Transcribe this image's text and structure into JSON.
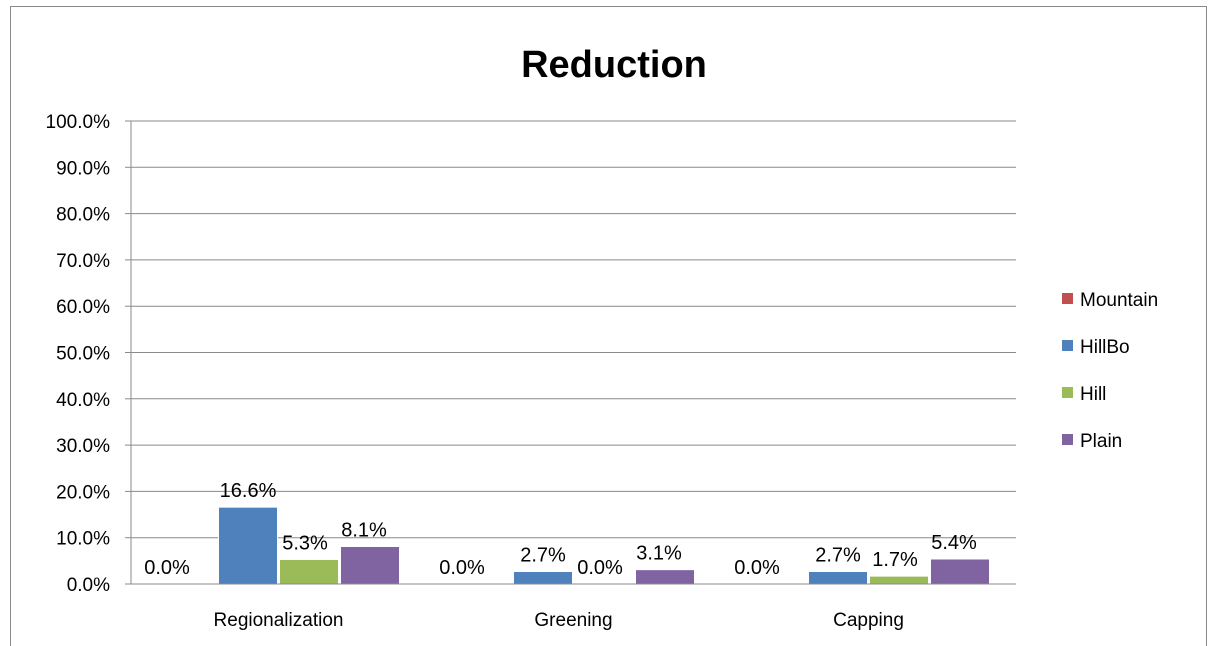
{
  "chart_data": {
    "type": "bar",
    "title": "Reduction",
    "categories": [
      "Regionalization",
      "Greening",
      "Capping"
    ],
    "series": [
      {
        "name": "Mountain",
        "color": "#C0504D",
        "values": [
          0.0,
          0.0,
          0.0
        ],
        "labels": [
          "0.0%",
          "0.0%",
          "0.0%"
        ]
      },
      {
        "name": "HillBo",
        "color": "#4F81BD",
        "values": [
          16.6,
          2.7,
          2.7
        ],
        "labels": [
          "16.6%",
          "2.7%",
          "2.7%"
        ]
      },
      {
        "name": "Hill",
        "color": "#9BBB59",
        "values": [
          5.3,
          0.0,
          1.7
        ],
        "labels": [
          "5.3%",
          "0.0%",
          "1.7%"
        ]
      },
      {
        "name": "Plain",
        "color": "#8064A2",
        "values": [
          8.1,
          3.1,
          5.4
        ],
        "labels": [
          "8.1%",
          "3.1%",
          "5.4%"
        ]
      }
    ],
    "yticks": [
      "0.0%",
      "10.0%",
      "20.0%",
      "30.0%",
      "40.0%",
      "50.0%",
      "60.0%",
      "70.0%",
      "80.0%",
      "90.0%",
      "100.0%"
    ],
    "ylim": [
      0,
      100
    ],
    "grid": true,
    "legend": "right"
  }
}
